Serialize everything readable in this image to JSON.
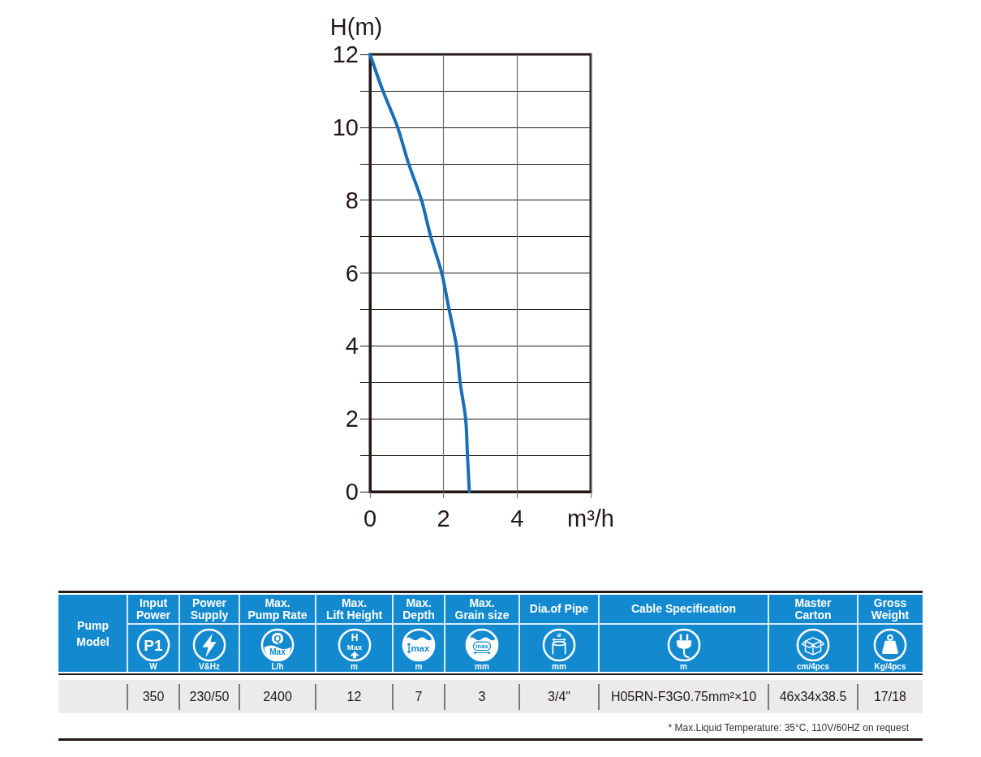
{
  "chart_data": [
    {
      "type": "line",
      "xlabel": "m³/h",
      "ylabel": "H(m)",
      "x": [
        0,
        0.35,
        0.75,
        1.05,
        1.4,
        1.65,
        1.95,
        2.15,
        2.35,
        2.45,
        2.6,
        2.65,
        2.7
      ],
      "values": [
        12,
        11,
        10,
        9,
        8,
        7,
        6,
        5,
        4,
        3,
        2,
        1,
        0
      ],
      "color": "#1a6eb6",
      "xlim": [
        0,
        6
      ],
      "xticks": [
        0,
        2,
        4,
        {
          "value": 6,
          "label": null
        }
      ],
      "ylim": [
        0,
        12
      ],
      "yticks": [
        0,
        {
          "value": 1,
          "label": null
        },
        2,
        {
          "value": 3,
          "label": null
        },
        4,
        {
          "value": 5,
          "label": null
        },
        6,
        {
          "value": 7,
          "label": null
        },
        8,
        {
          "value": 9,
          "label": null
        },
        10,
        {
          "value": 11,
          "label": null
        },
        12
      ],
      "grid": true,
      "marker": "none",
      "line_style": "solid"
    },
    {
      "type": "other",
      "color": "#138ad0",
      "categories": [
        "Pump Model",
        "Input Power",
        "Power Supply",
        "Max. Pump Rate",
        "Max. Lift Height",
        "Max. Depth",
        "Max. Grain size",
        "Dia.of Pipe",
        "Cable Specification",
        "Master Carton",
        "Gross Weight"
      ],
      "value_labels": [
        null,
        "350",
        "230/50",
        "2400",
        "12",
        "7",
        "3",
        "3/4\"",
        "H05RN-F3G0.75mm²×10",
        "46x34x38.5",
        "17/18"
      ],
      "annotations": [
        "W",
        "V&Hz",
        "L/h",
        "m",
        "m",
        "mm",
        "mm",
        "m",
        "cm/4pcs",
        "Kg/4pcs",
        "P1",
        "Q",
        "Max",
        "H",
        "Max",
        "max",
        "max",
        "ø",
        "* Max.Liquid Temperature: 35°C, 110V/60HZ on request"
      ]
    }
  ]
}
